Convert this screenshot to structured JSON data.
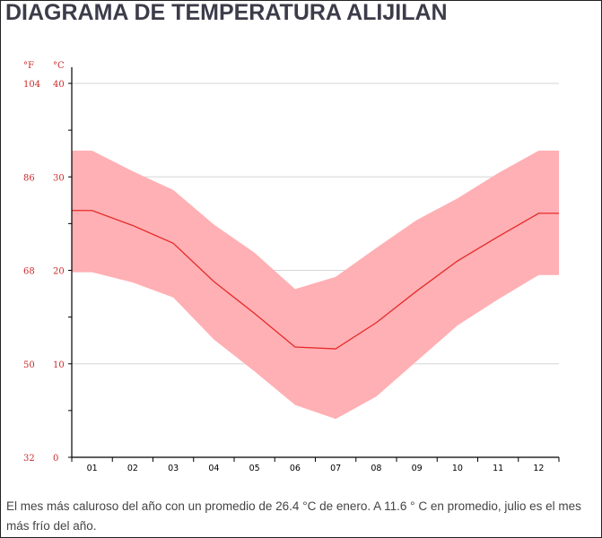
{
  "page": {
    "title": "DIAGRAMA DE TEMPERATURA ALIJILAN",
    "description": "El mes más caluroso del año con un promedio de 26.4 °C de enero. A 11.6 ° C en promedio, julio es el mes más frío del año."
  },
  "chart_data": {
    "type": "area",
    "title": "DIAGRAMA DE TEMPERATURA ALIJILAN",
    "categories": [
      "01",
      "02",
      "03",
      "04",
      "05",
      "06",
      "07",
      "08",
      "09",
      "10",
      "11",
      "12"
    ],
    "left_axis_unit": "°F",
    "right_axis_unit": "°C",
    "fahrenheit_ticks": [
      "104",
      "86",
      "68",
      "50",
      "32"
    ],
    "celsius_ticks": [
      "40",
      "30",
      "20",
      "10",
      "0"
    ],
    "ylim": [
      0,
      40
    ],
    "grid": true,
    "series": [
      {
        "kind": "line",
        "values": [
          26.4,
          24.8,
          22.9,
          18.8,
          15.4,
          11.8,
          11.6,
          14.4,
          17.8,
          21.0,
          23.6,
          26.1
        ]
      },
      {
        "kind": "band-max",
        "values": [
          32.8,
          30.6,
          28.6,
          24.9,
          21.9,
          18.0,
          19.3,
          22.4,
          25.4,
          27.7,
          30.4,
          32.8
        ]
      },
      {
        "kind": "band-min",
        "values": [
          19.8,
          18.7,
          17.1,
          12.6,
          9.2,
          5.6,
          4.1,
          6.5,
          10.3,
          14.1,
          16.9,
          19.5
        ]
      }
    ],
    "colors": {
      "band": "#ffb0b4",
      "line": "#e62a2a",
      "axis_labels": "#cc2b2b",
      "grid": "#d6d6d6",
      "axis": "#000000"
    }
  }
}
